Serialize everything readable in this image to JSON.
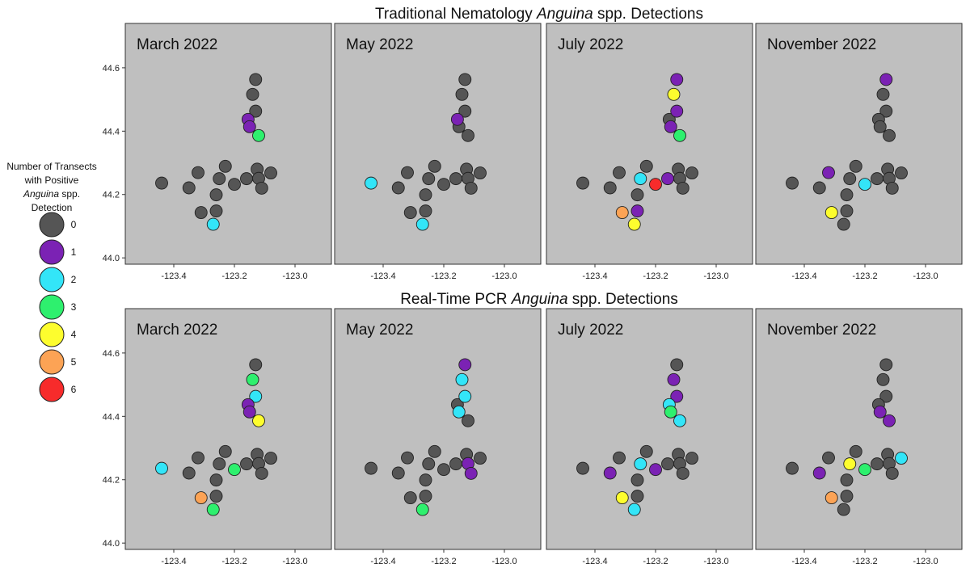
{
  "chart_data": {
    "type": "scatter",
    "row_titles": [
      {
        "prefix": "Traditional Nematology ",
        "italic": "Anguina",
        "suffix": " spp. Detections"
      },
      {
        "prefix": "Real-Time PCR ",
        "italic": "Anguina",
        "suffix": " spp. Detections"
      }
    ],
    "panel_titles": [
      "March 2022",
      "May 2022",
      "July 2022",
      "November 2022"
    ],
    "x_ticks": [
      -123.4,
      -123.2,
      -123.0
    ],
    "y_ticks": [
      44.0,
      44.2,
      44.4,
      44.6
    ],
    "x_tick_labels": [
      "-123.4",
      "-123.2",
      "-123.0"
    ],
    "y_tick_labels": [
      "44.0",
      "44.2",
      "44.4",
      "44.6"
    ],
    "xlim": [
      -123.56,
      -122.88
    ],
    "ylim": [
      43.98,
      44.74
    ],
    "grid": false,
    "legend": {
      "placement": "left",
      "title_lines": [
        {
          "text": "Number of Transects"
        },
        {
          "text": "with Positive"
        },
        {
          "italic": "Anguina",
          "text": " spp."
        },
        {
          "text": "Detection"
        }
      ],
      "levels": [
        0,
        1,
        2,
        3,
        4,
        5,
        6
      ],
      "labels": [
        "0",
        "1",
        "2",
        "3",
        "4",
        "5",
        "6"
      ],
      "colors": [
        "#555555",
        "#7b22b4",
        "#33e5f8",
        "#2ef06e",
        "#fdfd2e",
        "#fca355",
        "#f72b2b"
      ]
    },
    "sites": [
      {
        "lon": -123.13,
        "lat": 44.563
      },
      {
        "lon": -123.14,
        "lat": 44.516
      },
      {
        "lon": -123.13,
        "lat": 44.463
      },
      {
        "lon": -123.155,
        "lat": 44.437
      },
      {
        "lon": -123.15,
        "lat": 44.414
      },
      {
        "lon": -123.12,
        "lat": 44.386
      },
      {
        "lon": -123.44,
        "lat": 44.236
      },
      {
        "lon": -123.35,
        "lat": 44.221
      },
      {
        "lon": -123.32,
        "lat": 44.269
      },
      {
        "lon": -123.23,
        "lat": 44.289
      },
      {
        "lon": -123.25,
        "lat": 44.25
      },
      {
        "lon": -123.2,
        "lat": 44.232
      },
      {
        "lon": -123.26,
        "lat": 44.199
      },
      {
        "lon": -123.16,
        "lat": 44.25
      },
      {
        "lon": -123.125,
        "lat": 44.28
      },
      {
        "lon": -123.08,
        "lat": 44.268
      },
      {
        "lon": -123.12,
        "lat": 44.251
      },
      {
        "lon": -123.11,
        "lat": 44.22
      },
      {
        "lon": -123.31,
        "lat": 44.143
      },
      {
        "lon": -123.26,
        "lat": 44.148
      },
      {
        "lon": -123.27,
        "lat": 44.106
      }
    ],
    "panels": [
      {
        "row": 0,
        "col": 0,
        "title": "March 2022",
        "levels": [
          0,
          0,
          0,
          1,
          1,
          3,
          0,
          0,
          0,
          0,
          0,
          0,
          0,
          0,
          0,
          0,
          0,
          0,
          0,
          0,
          2
        ]
      },
      {
        "row": 0,
        "col": 1,
        "title": "May 2022",
        "levels": [
          0,
          0,
          0,
          1,
          0,
          0,
          2,
          0,
          0,
          0,
          0,
          0,
          0,
          0,
          0,
          0,
          0,
          0,
          0,
          0,
          2
        ]
      },
      {
        "row": 0,
        "col": 2,
        "title": "July 2022",
        "levels": [
          1,
          4,
          1,
          0,
          1,
          3,
          0,
          0,
          0,
          0,
          2,
          6,
          0,
          1,
          0,
          0,
          0,
          0,
          5,
          1,
          4
        ]
      },
      {
        "row": 0,
        "col": 3,
        "title": "November 2022",
        "levels": [
          1,
          0,
          0,
          0,
          0,
          0,
          0,
          0,
          1,
          0,
          0,
          2,
          0,
          0,
          0,
          0,
          0,
          0,
          4,
          0,
          0
        ]
      },
      {
        "row": 1,
        "col": 0,
        "title": "March 2022",
        "levels": [
          0,
          3,
          2,
          1,
          1,
          4,
          2,
          0,
          0,
          0,
          0,
          3,
          0,
          0,
          0,
          0,
          0,
          0,
          5,
          0,
          3
        ]
      },
      {
        "row": 1,
        "col": 1,
        "title": "May 2022",
        "levels": [
          1,
          2,
          2,
          0,
          2,
          0,
          0,
          0,
          0,
          0,
          0,
          0,
          0,
          0,
          0,
          0,
          1,
          1,
          0,
          0,
          3
        ]
      },
      {
        "row": 1,
        "col": 2,
        "title": "July 2022",
        "levels": [
          0,
          1,
          1,
          2,
          3,
          2,
          0,
          1,
          0,
          0,
          2,
          1,
          0,
          0,
          0,
          0,
          0,
          0,
          4,
          0,
          2
        ]
      },
      {
        "row": 1,
        "col": 3,
        "title": "November 2022",
        "levels": [
          0,
          0,
          0,
          0,
          1,
          1,
          0,
          1,
          0,
          0,
          4,
          3,
          0,
          0,
          0,
          2,
          0,
          0,
          5,
          0,
          0
        ]
      }
    ]
  }
}
